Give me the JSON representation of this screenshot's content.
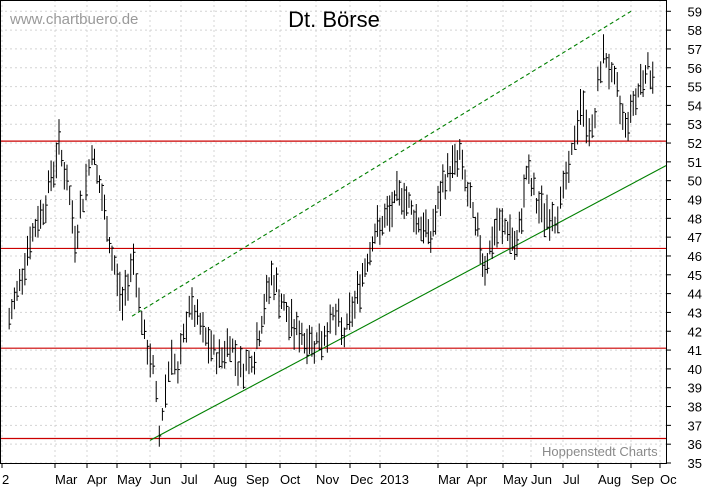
{
  "watermark": "www.chartbuero.de",
  "credit": "Hoppenstedt Charts",
  "chart_data": {
    "type": "bar",
    "subtype": "ohlc",
    "title": "Dt. Börse",
    "xlabel": "",
    "ylabel": "",
    "ylim": [
      35,
      59.6
    ],
    "yticks": [
      35,
      36,
      37,
      38,
      39,
      40,
      41,
      42,
      43,
      44,
      45,
      46,
      47,
      48,
      49,
      50,
      51,
      52,
      53,
      54,
      55,
      56,
      57,
      58,
      59
    ],
    "x_tick_labels": [
      "2",
      "Mar",
      "Apr",
      "May",
      "Jun",
      "Jul",
      "Aug",
      "Sep",
      "Oct",
      "Nov",
      "Dec",
      "2013",
      "Mar",
      "Apr",
      "May",
      "Jun",
      "Jul",
      "Aug",
      "Sep",
      "Oc"
    ],
    "grid": true,
    "colors": {
      "price": "#000000",
      "support_resistance": "#cc0000",
      "trend": "#008000",
      "grid": "#c8c8c8"
    },
    "horizontal_levels": [
      36.3,
      41.1,
      46.4,
      52.1
    ],
    "trend_lines": [
      {
        "style": "solid",
        "from": [
          "Jun",
          36.2
        ],
        "to": [
          "Oc",
          50.8
        ]
      },
      {
        "style": "dashed",
        "from": [
          "Jun",
          42.8
        ],
        "to": [
          "Sep",
          59.0
        ]
      }
    ],
    "price_path": [
      [
        "2",
        42.5
      ],
      [
        "2",
        46.4
      ],
      [
        "2",
        49.0
      ],
      [
        "Mar",
        51.9
      ],
      [
        "Mar",
        50.0
      ],
      [
        "Mar",
        47.0
      ],
      [
        "Mar",
        49.0
      ],
      [
        "Apr",
        51.7
      ],
      [
        "Apr",
        49.0
      ],
      [
        "Apr",
        46.0
      ],
      [
        "May",
        43.5
      ],
      [
        "May",
        46.0
      ],
      [
        "May",
        41.5
      ],
      [
        "Jun",
        40.0
      ],
      [
        "Jun",
        36.5
      ],
      [
        "Jun",
        39.0
      ],
      [
        "Jun",
        41.0
      ],
      [
        "Jun",
        39.5
      ],
      [
        "Jul",
        43.5
      ],
      [
        "Jul",
        41.5
      ],
      [
        "Aug",
        40.5
      ],
      [
        "Aug",
        41.5
      ],
      [
        "Aug",
        40.0
      ],
      [
        "Sep",
        40.8
      ],
      [
        "Sep",
        45.0
      ],
      [
        "Oct",
        42.5
      ],
      [
        "Oct",
        41.5
      ],
      [
        "Nov",
        41.5
      ],
      [
        "Nov",
        42.8
      ],
      [
        "Nov",
        41.8
      ],
      [
        "Dec",
        44.0
      ],
      [
        "Dec",
        47.0
      ],
      [
        "2013",
        48.0
      ],
      [
        "2013",
        49.5
      ],
      [
        "2013",
        48.0
      ],
      [
        "2013",
        47.0
      ],
      [
        "Mar",
        50.2
      ],
      [
        "Mar",
        51.3
      ],
      [
        "Apr",
        48.0
      ],
      [
        "Apr",
        45.5
      ],
      [
        "Apr",
        47.5
      ],
      [
        "May",
        47.5
      ],
      [
        "May",
        46.2
      ],
      [
        "May",
        50.5
      ],
      [
        "Jun",
        48.5
      ],
      [
        "Jun",
        48.0
      ],
      [
        "Jul",
        50.5
      ],
      [
        "Jul",
        54.0
      ],
      [
        "Jul",
        52.5
      ],
      [
        "Aug",
        57.0
      ],
      [
        "Aug",
        55.0
      ],
      [
        "Aug",
        53.0
      ],
      [
        "Sep",
        54.5
      ],
      [
        "Sep",
        56.0
      ],
      [
        "Sep",
        55.5
      ]
    ]
  }
}
